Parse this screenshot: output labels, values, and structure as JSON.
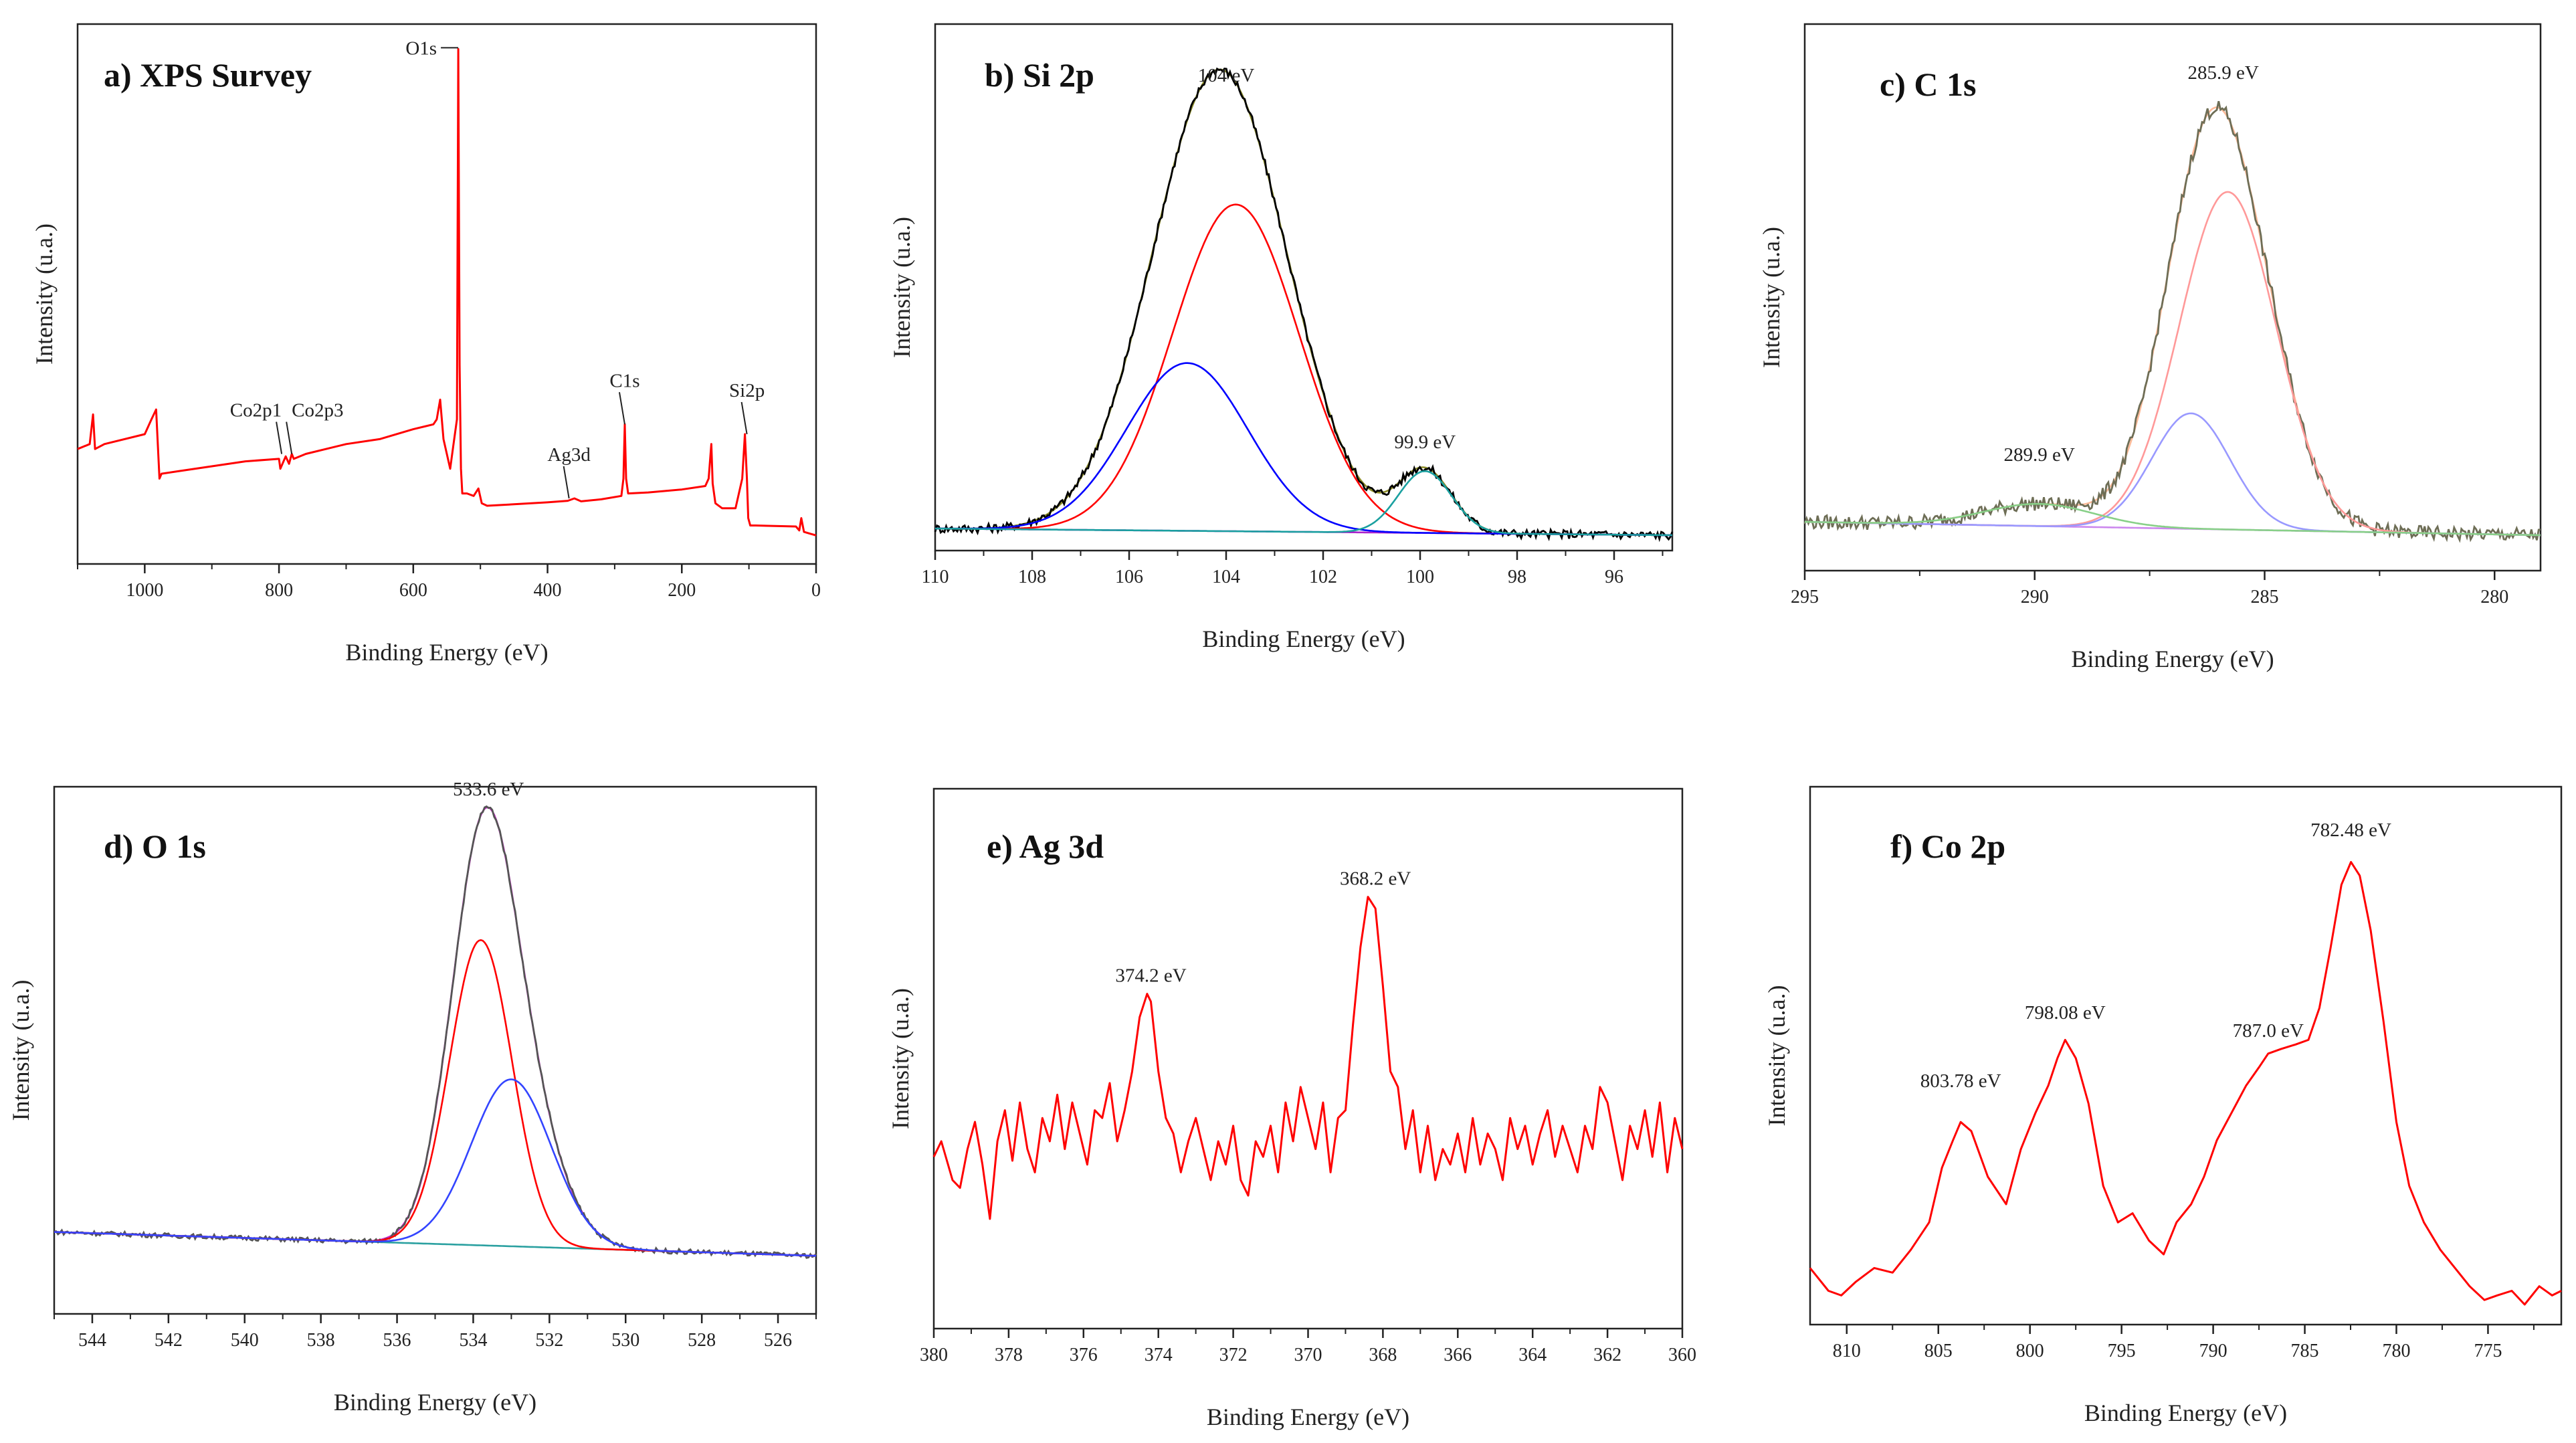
{
  "figure": {
    "ylabel_common": "Intensity (u.a.)"
  },
  "chart_data": [
    {
      "id": "a",
      "type": "line",
      "title": "a) XPS Survey",
      "xlabel": "Binding Energy (eV)",
      "ylabel": "Intensity (u.a.)",
      "xlim": [
        1100,
        0
      ],
      "ylim": [
        0,
        100
      ],
      "xticks": [
        1000,
        800,
        600,
        400,
        200,
        0
      ],
      "annotations": [
        {
          "text": "O1s",
          "x": 531,
          "y": 99
        },
        {
          "text": "Co2p1",
          "x": 796,
          "y": 17
        },
        {
          "text": "Co2p3",
          "x": 781,
          "y": 17
        },
        {
          "text": "Ag3d",
          "x": 368,
          "y": 8
        },
        {
          "text": "C1s",
          "x": 285,
          "y": 23
        },
        {
          "text": "Si2p",
          "x": 103,
          "y": 21
        }
      ],
      "series": [
        {
          "name": "survey",
          "color": "#ff0000",
          "x": [
            1100,
            1082,
            1077,
            1074,
            1060,
            1000,
            990,
            983,
            978,
            975,
            950,
            900,
            850,
            800,
            798,
            790,
            785,
            781,
            778,
            760,
            700,
            650,
            600,
            570,
            565,
            560,
            555,
            545,
            540,
            535,
            533,
            531,
            529,
            527,
            520,
            510,
            503,
            498,
            490,
            450,
            400,
            370,
            360,
            350,
            320,
            290,
            287,
            285,
            283,
            280,
            250,
            200,
            165,
            160,
            156,
            154,
            150,
            140,
            120,
            110,
            106,
            103,
            101,
            98,
            90,
            30,
            25,
            22,
            18,
            10,
            0
          ],
          "y": [
            18,
            19,
            25,
            18,
            19,
            21,
            24,
            26,
            12,
            13,
            13.5,
            14.5,
            15.5,
            16,
            14,
            16.5,
            15,
            17,
            16,
            17,
            19,
            20,
            22,
            23,
            24,
            28,
            20,
            14,
            19,
            24,
            99,
            35,
            14,
            9,
            9,
            8.5,
            10,
            7,
            6.5,
            6.8,
            7.2,
            7.5,
            8,
            7.4,
            7.8,
            8.5,
            12,
            23,
            12,
            9,
            9.2,
            9.8,
            10.5,
            12,
            19,
            11,
            7,
            6,
            6,
            12,
            21,
            12,
            4,
            2.5,
            2.5,
            2.3,
            1.5,
            4,
            1.2,
            0.9,
            0.5
          ]
        }
      ]
    },
    {
      "id": "b",
      "type": "line",
      "title": "b) Si 2p",
      "xlabel": "Binding Energy (eV)",
      "ylabel": "Intensity (u.a.)",
      "xlim": [
        110,
        94.8
      ],
      "ylim": [
        0,
        100
      ],
      "xticks": [
        110,
        108,
        106,
        104,
        102,
        100,
        98,
        96
      ],
      "annotations": [
        {
          "text": "104 eV",
          "x": 104,
          "y": 100
        },
        {
          "text": "99.9 eV",
          "x": 99.9,
          "y": 17
        }
      ],
      "baseline": {
        "x_start": 110,
        "y_start": 1.5,
        "x_end": 94.8,
        "y_end": 0
      },
      "components": [
        {
          "name": "Si 2p component (103.8 eV)",
          "color": "#ff0000",
          "center": 103.8,
          "height": 74,
          "sigma": 1.3
        },
        {
          "name": "Si 2p component (104.8 eV)",
          "color": "#0000ff",
          "center": 104.8,
          "height": 38,
          "sigma": 1.25
        },
        {
          "name": "Si 2p component (99.9 eV)",
          "color": "#1aa0a0",
          "center": 99.9,
          "height": 14,
          "sigma": 0.55
        }
      ],
      "series": [
        {
          "name": "baseline",
          "color": "#aa22cc",
          "kind": "baseline"
        },
        {
          "name": "envelope",
          "color": "#8c8c28",
          "kind": "envelope"
        },
        {
          "name": "experimental",
          "color": "#000000",
          "kind": "experimental",
          "noise": 1.0
        }
      ]
    },
    {
      "id": "c",
      "type": "line",
      "title": "c) C 1s",
      "xlabel": "Binding Energy (eV)",
      "ylabel": "Intensity (u.a.)",
      "xlim": [
        295,
        279
      ],
      "ylim": [
        0,
        100
      ],
      "xticks": [
        295,
        290,
        285,
        280
      ],
      "annotations": [
        {
          "text": "285.9 eV",
          "x": 285.9,
          "y": 100
        },
        {
          "text": "289.9 eV",
          "x": 289.9,
          "y": 14
        }
      ],
      "baseline": {
        "x_start": 295,
        "y_start": 3,
        "x_end": 279,
        "y_end": 0
      },
      "components": [
        {
          "name": "C 1s component (285.8 eV)",
          "color": "#ff9999",
          "center": 285.8,
          "height": 76,
          "sigma": 1.05
        },
        {
          "name": "C 1s component (286.6 eV)",
          "color": "#9999ff",
          "center": 286.6,
          "height": 26,
          "sigma": 0.85
        },
        {
          "name": "C 1s component (289.9 eV)",
          "color": "#88d088",
          "center": 289.9,
          "height": 5,
          "sigma": 1.2
        }
      ],
      "series": [
        {
          "name": "baseline",
          "color": "#cc88ee",
          "kind": "baseline"
        },
        {
          "name": "envelope",
          "color": "#ffbb99",
          "kind": "envelope"
        },
        {
          "name": "experimental",
          "color": "#6e6e56",
          "kind": "experimental",
          "noise": 1.6
        }
      ]
    },
    {
      "id": "d",
      "type": "line",
      "title": "d) O 1s",
      "xlabel": "Binding Energy (eV)",
      "ylabel": "Intensity (u.a.)",
      "xlim": [
        545,
        525
      ],
      "ylim": [
        0,
        100
      ],
      "xticks": [
        544,
        542,
        540,
        538,
        536,
        534,
        532,
        530,
        528,
        526
      ],
      "annotations": [
        {
          "text": "533.6 eV",
          "x": 533.6,
          "y": 100
        }
      ],
      "baseline": {
        "x_start": 545,
        "y_start": 11,
        "x_end": 525,
        "y_end": 6
      },
      "components": [
        {
          "name": "O 1s component (533.8 eV)",
          "color": "#ff0000",
          "center": 533.8,
          "height": 64,
          "sigma": 0.82
        },
        {
          "name": "O 1s component (533.0 eV)",
          "color": "#3344ff",
          "center": 533.0,
          "height": 35,
          "sigma": 1.05
        }
      ],
      "series": [
        {
          "name": "baseline",
          "color": "#2aa0a0",
          "kind": "baseline"
        },
        {
          "name": "envelope",
          "color": "#cc22cc",
          "kind": "envelope"
        },
        {
          "name": "experimental",
          "color": "#555555",
          "kind": "experimental",
          "noise": 0.5
        }
      ]
    },
    {
      "id": "e",
      "type": "line",
      "title": "e) Ag 3d",
      "xlabel": "Binding Energy (eV)",
      "ylabel": "Intensity (u.a.)",
      "xlim": [
        380,
        360
      ],
      "ylim": [
        0,
        100
      ],
      "xticks": [
        380,
        378,
        376,
        374,
        372,
        370,
        368,
        366,
        364,
        362,
        360
      ],
      "annotations": [
        {
          "text": "374.2 eV",
          "x": 374.2,
          "y": 68
        },
        {
          "text": "368.2 eV",
          "x": 368.2,
          "y": 93
        }
      ],
      "series": [
        {
          "name": "Ag 3d",
          "color": "#ff0000",
          "x": [
            380,
            379.8,
            379.5,
            379.3,
            379.1,
            378.9,
            378.7,
            378.5,
            378.3,
            378.1,
            377.9,
            377.7,
            377.5,
            377.3,
            377.1,
            376.9,
            376.7,
            376.5,
            376.3,
            376.1,
            375.9,
            375.7,
            375.5,
            375.3,
            375.1,
            374.9,
            374.7,
            374.5,
            374.3,
            374.2,
            374.0,
            373.8,
            373.6,
            373.4,
            373.2,
            373.0,
            372.8,
            372.6,
            372.4,
            372.2,
            372.0,
            371.8,
            371.6,
            371.4,
            371.2,
            371.0,
            370.8,
            370.6,
            370.4,
            370.2,
            370.0,
            369.8,
            369.6,
            369.4,
            369.2,
            369.0,
            368.8,
            368.6,
            368.4,
            368.2,
            368.0,
            367.8,
            367.6,
            367.4,
            367.2,
            367.0,
            366.8,
            366.6,
            366.4,
            366.2,
            366.0,
            365.8,
            365.6,
            365.4,
            365.2,
            365.0,
            364.8,
            364.6,
            364.4,
            364.2,
            364.0,
            363.8,
            363.6,
            363.4,
            363.2,
            363.0,
            362.8,
            362.6,
            362.4,
            362.2,
            362.0,
            361.8,
            361.6,
            361.4,
            361.2,
            361.0,
            360.8,
            360.6,
            360.4,
            360.2,
            360.0
          ],
          "y": [
            26,
            30,
            20,
            18,
            28,
            35,
            24,
            10,
            30,
            38,
            25,
            40,
            28,
            22,
            36,
            30,
            42,
            28,
            40,
            32,
            24,
            38,
            36,
            45,
            30,
            38,
            48,
            62,
            68,
            66,
            48,
            36,
            32,
            22,
            30,
            36,
            28,
            20,
            30,
            24,
            34,
            20,
            16,
            30,
            26,
            34,
            22,
            40,
            30,
            44,
            36,
            28,
            40,
            22,
            36,
            38,
            60,
            80,
            93,
            90,
            70,
            48,
            44,
            28,
            38,
            22,
            34,
            20,
            28,
            24,
            32,
            22,
            36,
            24,
            32,
            28,
            20,
            36,
            28,
            34,
            24,
            32,
            38,
            26,
            34,
            28,
            22,
            34,
            28,
            44,
            40,
            30,
            20,
            34,
            28,
            38,
            26,
            40,
            22,
            36,
            28
          ]
        }
      ]
    },
    {
      "id": "f",
      "type": "line",
      "title": "f) Co 2p",
      "xlabel": "Binding Energy (eV)",
      "ylabel": "Intensity (u.a.)",
      "xlim": [
        812,
        771
      ],
      "ylim": [
        0,
        100
      ],
      "xticks": [
        810,
        805,
        800,
        795,
        790,
        785,
        780,
        775
      ],
      "annotations": [
        {
          "text": "803.78 eV",
          "x": 803.78,
          "y": 45
        },
        {
          "text": "798.08 eV",
          "x": 798.08,
          "y": 60
        },
        {
          "text": "787.0 eV",
          "x": 787.0,
          "y": 56
        },
        {
          "text": "782.48 eV",
          "x": 782.48,
          "y": 100
        }
      ],
      "series": [
        {
          "name": "Co 2p",
          "color": "#ff0000",
          "x": [
            812,
            811,
            810.3,
            809.5,
            808.5,
            807.5,
            806.5,
            805.5,
            804.8,
            804.2,
            803.78,
            803.2,
            802.3,
            801.3,
            800.5,
            799.7,
            799.0,
            798.5,
            798.08,
            797.5,
            796.8,
            796.0,
            795.2,
            794.4,
            793.5,
            792.7,
            792.0,
            791.2,
            790.5,
            789.8,
            789.0,
            788.2,
            787.5,
            787.0,
            786.3,
            785.5,
            784.8,
            784.2,
            783.6,
            783.0,
            782.48,
            782.0,
            781.4,
            780.7,
            780.0,
            779.3,
            778.5,
            777.6,
            776.8,
            776.0,
            775.2,
            774.5,
            773.7,
            773.0,
            772.2,
            771.5,
            771.0
          ],
          "y": [
            8,
            3,
            2,
            5,
            8,
            7,
            12,
            18,
            30,
            36,
            40,
            38,
            28,
            22,
            34,
            42,
            48,
            54,
            58,
            54,
            44,
            26,
            18,
            20,
            14,
            11,
            18,
            22,
            28,
            36,
            42,
            48,
            52,
            55,
            56,
            57,
            58,
            65,
            78,
            92,
            97,
            94,
            82,
            62,
            40,
            26,
            18,
            12,
            8,
            4,
            1,
            2,
            3,
            0,
            4,
            2,
            3
          ]
        }
      ]
    }
  ]
}
